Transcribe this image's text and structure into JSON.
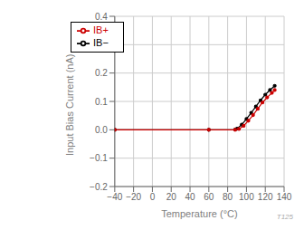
{
  "chart_data": {
    "type": "line",
    "x_label": "Temperature (°C)",
    "y_label": "Input Bias Current  (nA)",
    "xlim": [
      -40,
      140
    ],
    "ylim": [
      -0.2,
      0.4
    ],
    "xticks": [
      {
        "value": -40,
        "label": "−40"
      },
      {
        "value": -20,
        "label": "−20"
      },
      0,
      20,
      40,
      60,
      80,
      100,
      120,
      140
    ],
    "yticks": [
      {
        "value": -0.2,
        "label": "−0.2"
      },
      {
        "value": -0.1,
        "label": "−0.1"
      },
      {
        "value": 0,
        "label": "0.0"
      },
      0.1,
      0.2,
      0.3,
      0.4
    ],
    "grid": true,
    "legend": "upper left",
    "annotations": [
      {
        "text": "T125"
      }
    ],
    "series": [
      {
        "name": "IB−",
        "color": "#000000",
        "marker": "point",
        "x": [
          -40,
          60,
          88,
          90,
          95,
          100,
          105,
          110,
          115,
          120,
          125,
          130
        ],
        "values": [
          0.0,
          0.0,
          0.001,
          0.004,
          0.018,
          0.038,
          0.06,
          0.082,
          0.104,
          0.124,
          0.14,
          0.155
        ]
      },
      {
        "name": "IB+",
        "color": "#cc0000",
        "marker": "point",
        "x": [
          -40,
          60,
          88,
          92,
          97,
          102,
          107,
          112,
          117,
          122,
          127,
          130
        ],
        "values": [
          0.0,
          0.0,
          0.0,
          0.003,
          0.014,
          0.032,
          0.052,
          0.074,
          0.096,
          0.114,
          0.13,
          0.14
        ]
      }
    ]
  }
}
